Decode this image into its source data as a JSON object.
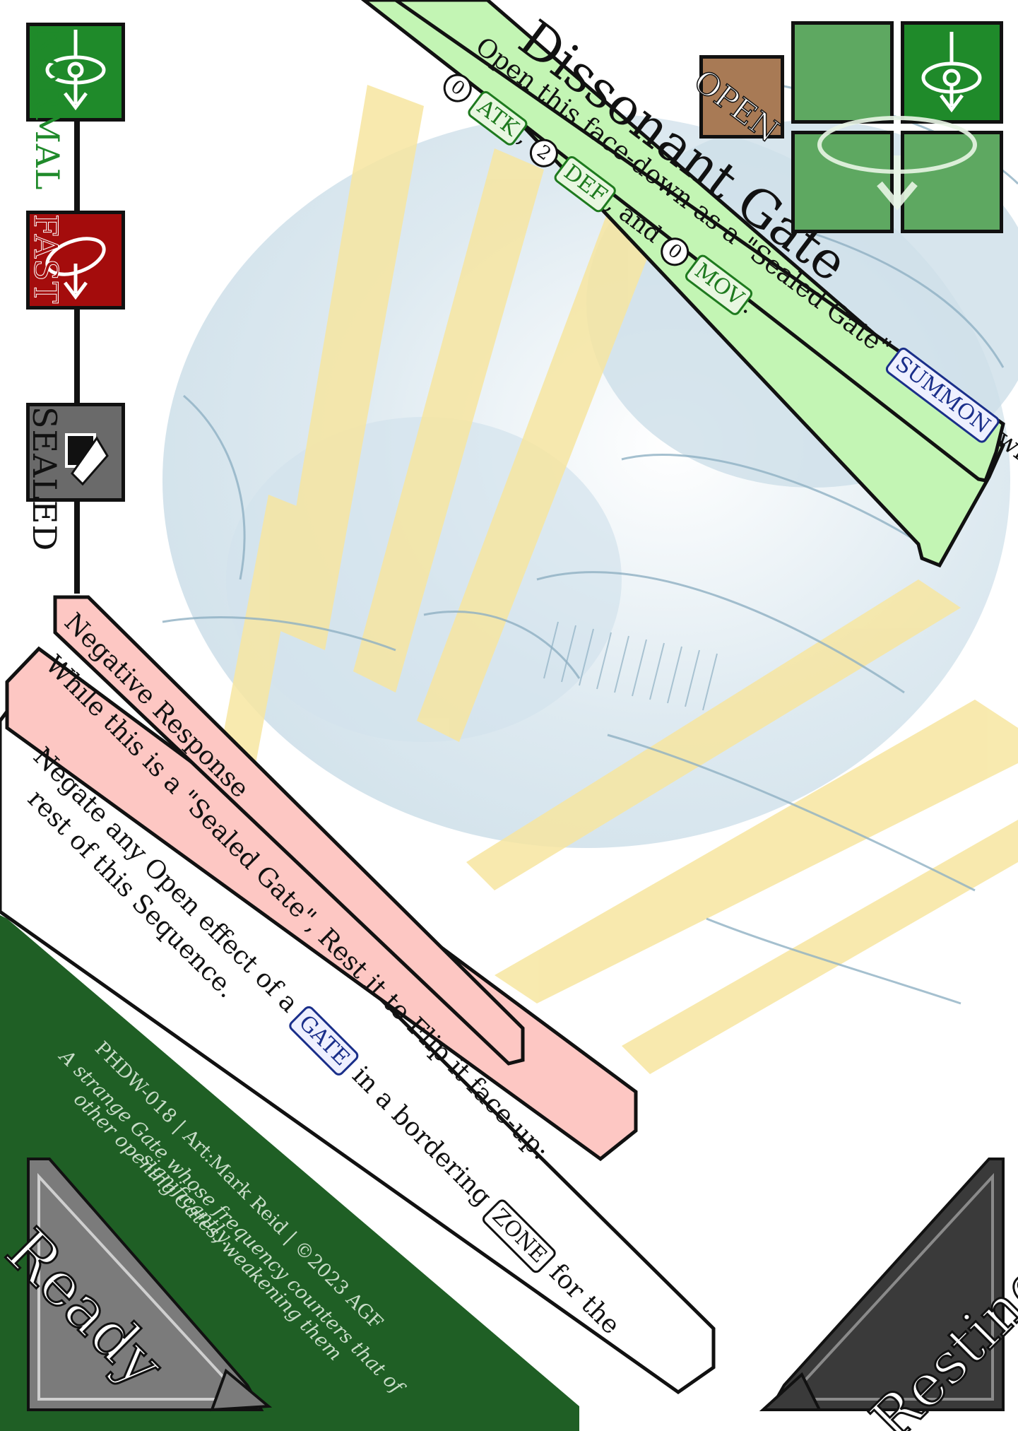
{
  "card": {
    "title": "Dissonant Gate",
    "open_badge": "OPEN",
    "open_text": {
      "line1": "Open this face-down as a \"Sealed Gate\"",
      "summon_chip": "SUMMON",
      "with": "with",
      "atk_value": "0",
      "atk_chip": "ATK",
      "def_value": "2",
      "def_chip": "DEF",
      "and": ", and",
      "mov_value": "0",
      "mov_chip": "MOV"
    },
    "states": {
      "normal": "NORMAL",
      "fast": "FAST",
      "sealed": "SEALED"
    },
    "effect": {
      "name": "Negative Response",
      "condition": "While this is a \"Sealed Gate\", Rest it to Flip it face-up:",
      "text_before_gate": "Negate any Open effect of a",
      "gate_chip": "GATE",
      "text_after_gate": "in a bordering",
      "zone_chip": "ZONE",
      "text_after_zone": "for the",
      "text_line2": "rest of this Sequence."
    },
    "footer": {
      "credit": "PHDW-018 | Art:Mark Reid | ©2023 AGF",
      "flavor_line1": "A strange Gate whose frequency counters that of",
      "flavor_line2": "other opening Gates, weakening them",
      "flavor_line3": "significantly."
    },
    "corners": {
      "ready": "Ready",
      "resting": "Resting"
    },
    "colors": {
      "green_panel": "#c3f5b4",
      "green_dark": "#1f5f25",
      "normal_box": "#1f8a2a",
      "fast_box": "#a40c0c",
      "sealed_box": "#6a6a6a",
      "pink_panel": "#fdc7c3",
      "icon_tile": "#5ea861"
    }
  }
}
